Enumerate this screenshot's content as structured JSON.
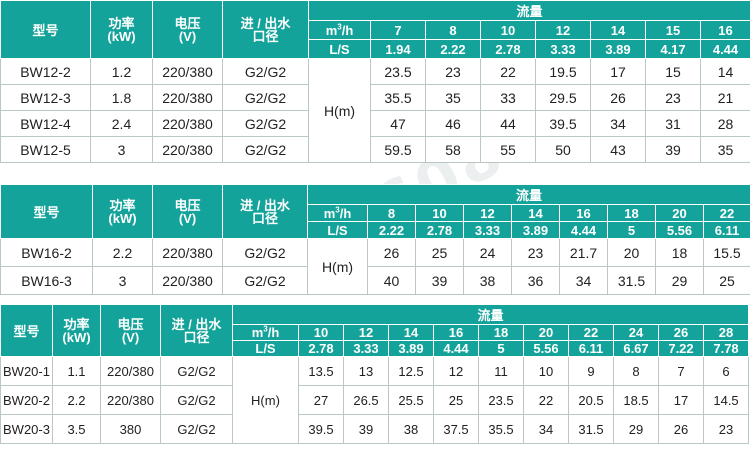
{
  "headers": {
    "model": "型号",
    "power_line1": "功率",
    "power_line2": "(kW)",
    "voltage_line1": "电压",
    "voltage_line2": "(V)",
    "inout_line1": "进 / 出水",
    "inout_line2": "口径",
    "flow_title": "流量",
    "unit_m3h_base": "m",
    "unit_m3h_sup": "3",
    "unit_m3h_suffix": "/h",
    "unit_ls": "L/S",
    "head_label": "H(m)"
  },
  "tables": [
    {
      "m3h": [
        "7",
        "8",
        "10",
        "12",
        "14",
        "15",
        "16"
      ],
      "ls": [
        "1.94",
        "2.22",
        "2.78",
        "3.33",
        "3.89",
        "4.17",
        "4.44"
      ],
      "rows": [
        {
          "model": "BW12-2",
          "power": "1.2",
          "voltage": "220/380",
          "inout": "G2/G2",
          "heads": [
            "23.5",
            "23",
            "22",
            "19.5",
            "17",
            "15",
            "14"
          ]
        },
        {
          "model": "BW12-3",
          "power": "1.8",
          "voltage": "220/380",
          "inout": "G2/G2",
          "heads": [
            "35.5",
            "35",
            "33",
            "29.5",
            "26",
            "23",
            "21"
          ]
        },
        {
          "model": "BW12-4",
          "power": "2.4",
          "voltage": "220/380",
          "inout": "G2/G2",
          "heads": [
            "47",
            "46",
            "44",
            "39.5",
            "34",
            "31",
            "28"
          ]
        },
        {
          "model": "BW12-5",
          "power": "3",
          "voltage": "220/380",
          "inout": "G2/G2",
          "heads": [
            "59.5",
            "58",
            "55",
            "50",
            "43",
            "39",
            "35"
          ]
        }
      ]
    },
    {
      "m3h": [
        "8",
        "10",
        "12",
        "14",
        "16",
        "18",
        "20",
        "22"
      ],
      "ls": [
        "2.22",
        "2.78",
        "3.33",
        "3.89",
        "4.44",
        "5",
        "5.56",
        "6.11"
      ],
      "rows": [
        {
          "model": "BW16-2",
          "power": "2.2",
          "voltage": "220/380",
          "inout": "G2/G2",
          "heads": [
            "26",
            "25",
            "24",
            "23",
            "21.7",
            "20",
            "18",
            "15.5"
          ]
        },
        {
          "model": "BW16-3",
          "power": "3",
          "voltage": "220/380",
          "inout": "G2/G2",
          "heads": [
            "40",
            "39",
            "38",
            "36",
            "34",
            "31.5",
            "29",
            "25"
          ]
        }
      ]
    },
    {
      "m3h": [
        "10",
        "12",
        "14",
        "16",
        "18",
        "20",
        "22",
        "24",
        "26",
        "28"
      ],
      "ls": [
        "2.78",
        "3.33",
        "3.89",
        "4.44",
        "5",
        "5.56",
        "6.11",
        "6.67",
        "7.22",
        "7.78"
      ],
      "rows": [
        {
          "model": "BW20-1",
          "power": "1.1",
          "voltage": "220/380",
          "inout": "G2/G2",
          "heads": [
            "13.5",
            "13",
            "12.5",
            "12",
            "11",
            "10",
            "9",
            "8",
            "7",
            "6"
          ]
        },
        {
          "model": "BW20-2",
          "power": "2.2",
          "voltage": "220/380",
          "inout": "G2/G2",
          "heads": [
            "27",
            "26.5",
            "25.5",
            "25",
            "23.5",
            "22",
            "20.5",
            "18.5",
            "17",
            "14.5"
          ]
        },
        {
          "model": "BW20-3",
          "power": "3.5",
          "voltage": "380",
          "inout": "G2/G2",
          "heads": [
            "39.5",
            "39",
            "38",
            "37.5",
            "35.5",
            "34",
            "31.5",
            "29",
            "26",
            "23"
          ]
        }
      ]
    }
  ],
  "watermark": "400-675-6086"
}
